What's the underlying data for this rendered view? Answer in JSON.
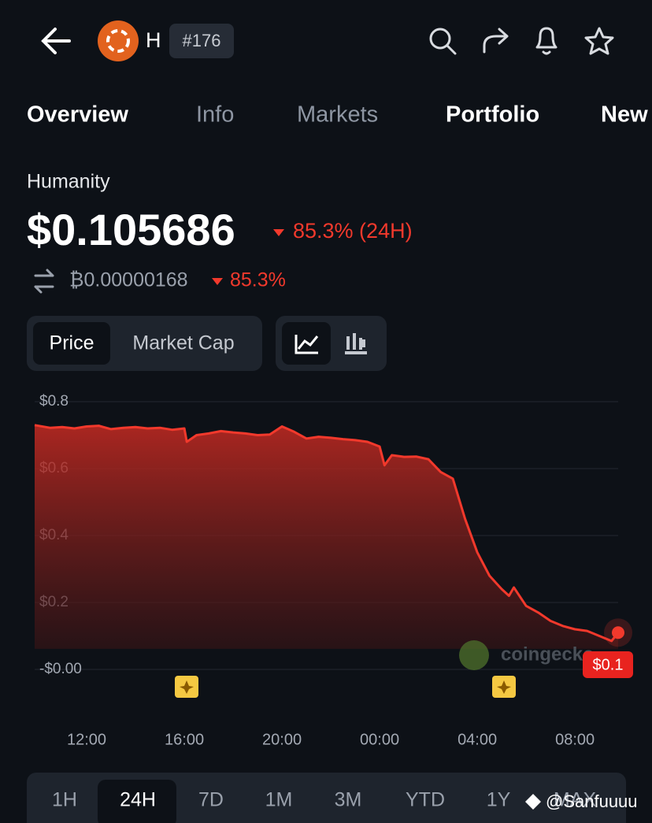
{
  "header": {
    "symbol": "H",
    "rank": "#176"
  },
  "tabs": [
    "Overview",
    "Info",
    "Markets",
    "Portfolio",
    "New"
  ],
  "coin": {
    "name": "Humanity",
    "price": "$0.105686",
    "change": "85.3% (24H)",
    "btc_price": "₿0.00000168",
    "btc_change": "85.3%"
  },
  "toggle": [
    "Price",
    "Market Cap"
  ],
  "chart_data": {
    "type": "line",
    "color": "#f2392c",
    "grid": true,
    "x": [
      9.87,
      10.5,
      11,
      11.5,
      12,
      12.5,
      13,
      13.5,
      14,
      14.5,
      15,
      15.5,
      16,
      16.1,
      16.5,
      17,
      17.5,
      18,
      18.5,
      19,
      19.5,
      20,
      20.5,
      21,
      21.5,
      22,
      22.5,
      23,
      23.5,
      24,
      24.2,
      24.5,
      25,
      25.5,
      26,
      26.5,
      27,
      27.5,
      28,
      28.5,
      29,
      29.3,
      29.5,
      30,
      30.5,
      31,
      31.5,
      32,
      32.5,
      33,
      33.5,
      33.77
    ],
    "values": [
      0.73,
      0.722,
      0.724,
      0.72,
      0.726,
      0.728,
      0.718,
      0.722,
      0.724,
      0.72,
      0.722,
      0.716,
      0.72,
      0.68,
      0.7,
      0.705,
      0.712,
      0.708,
      0.705,
      0.7,
      0.702,
      0.726,
      0.71,
      0.69,
      0.695,
      0.692,
      0.688,
      0.685,
      0.68,
      0.666,
      0.61,
      0.64,
      0.635,
      0.636,
      0.628,
      0.59,
      0.57,
      0.45,
      0.35,
      0.28,
      0.24,
      0.22,
      0.245,
      0.19,
      0.17,
      0.145,
      0.13,
      0.12,
      0.115,
      0.1,
      0.085,
      0.11
    ],
    "xlim": [
      9.87,
      33.77
    ],
    "ylim": [
      0,
      0.8
    ],
    "xticks": [
      {
        "value": 12,
        "label": "12:00"
      },
      {
        "value": 16,
        "label": "16:00"
      },
      {
        "value": 20,
        "label": "20:00"
      },
      {
        "value": 24,
        "label": "00:00"
      },
      {
        "value": 28,
        "label": "04:00"
      },
      {
        "value": 32,
        "label": "08:00"
      }
    ],
    "yticks": [
      {
        "value": 0.8,
        "label": "$0.8"
      },
      {
        "value": 0.6,
        "label": "$0.6"
      },
      {
        "value": 0.4,
        "label": "$0.4"
      },
      {
        "value": 0.2,
        "label": "$0.2"
      },
      {
        "value": 0,
        "label": "-$0.00"
      }
    ],
    "end_label": "$0.1",
    "watermark": "coingecko"
  },
  "ranges": [
    "1H",
    "24H",
    "7D",
    "1M",
    "3M",
    "YTD",
    "1Y",
    "MAX"
  ],
  "credit": "@Sanfuuuu"
}
